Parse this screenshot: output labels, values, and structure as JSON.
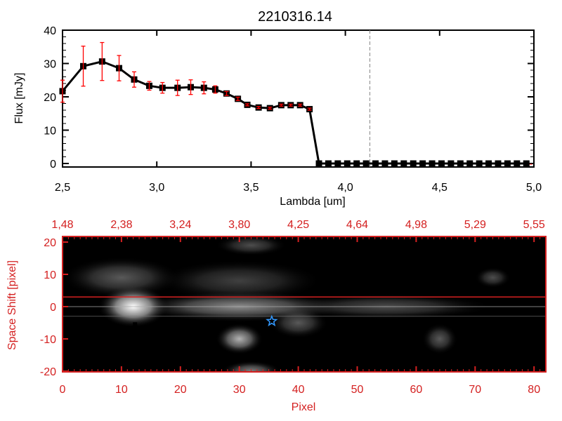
{
  "chart_data": [
    {
      "type": "line",
      "title": "2210316.14",
      "xlabel": "Lambda [um]",
      "ylabel": "Flux [mJy]",
      "xlim": [
        2.5,
        5.0
      ],
      "ylim": [
        -1,
        41
      ],
      "xticks": [
        "2.5",
        "3.0",
        "3.5",
        "4.0",
        "4.5",
        "5.0"
      ],
      "yticks": [
        "0",
        "10",
        "20",
        "30",
        "40"
      ],
      "marker_vline": 4.13,
      "x": [
        2.5,
        2.61,
        2.71,
        2.8,
        2.88,
        2.96,
        3.03,
        3.11,
        3.18,
        3.25,
        3.31,
        3.37,
        3.43,
        3.48,
        3.54,
        3.6,
        3.66,
        3.71,
        3.76,
        3.81,
        3.86,
        3.91,
        3.96,
        4.01,
        4.06,
        4.11,
        4.16,
        4.21,
        4.26,
        4.31,
        4.36,
        4.41,
        4.46,
        4.51,
        4.56,
        4.61,
        4.66,
        4.71,
        4.76,
        4.81,
        4.86,
        4.91,
        4.96
      ],
      "y": [
        21.7,
        29.2,
        30.6,
        28.6,
        25.2,
        23.3,
        22.7,
        22.7,
        22.9,
        22.7,
        22.2,
        21.0,
        19.4,
        17.6,
        16.8,
        16.6,
        17.5,
        17.5,
        17.5,
        16.3,
        0,
        0,
        0,
        0,
        0,
        0,
        0,
        0,
        0,
        0,
        0,
        0,
        0,
        0,
        0,
        0,
        0,
        0,
        0,
        0,
        0,
        0,
        0
      ],
      "yerr": [
        3.3,
        6.0,
        5.7,
        3.8,
        2.3,
        1.3,
        1.6,
        2.3,
        2.2,
        1.8,
        1.1,
        0.6,
        0.5,
        0.3,
        0.3,
        0.3,
        0.3,
        0.3,
        0.3,
        0.3,
        0,
        0,
        0,
        0,
        0,
        0,
        0,
        0,
        0,
        0,
        0,
        0,
        0,
        0,
        0,
        0,
        0,
        0,
        0,
        0,
        0,
        0,
        0
      ]
    },
    {
      "type": "heatmap",
      "xlabel": "Pixel",
      "ylabel": "Space Shift [pixel]",
      "xlim": [
        0,
        81
      ],
      "ylim": [
        -21,
        21
      ],
      "xticks": [
        "0",
        "10",
        "20",
        "30",
        "40",
        "50",
        "60",
        "70",
        "80"
      ],
      "yticks": [
        "20",
        "10",
        "0",
        "-10",
        "-20"
      ],
      "top_ticks": [
        "1.48",
        "2.38",
        "3.24",
        "3.80",
        "4.25",
        "4.64",
        "4.98",
        "5.29",
        "5.55"
      ],
      "aperture_line": 3,
      "source_marker": {
        "pixel": 35.5,
        "shift": -4.5
      },
      "blobs": [
        {
          "pixel": 12,
          "shift": 0,
          "sx": 6,
          "sy": 4,
          "level": 1.0
        },
        {
          "pixel": 30,
          "shift": 0,
          "sx": 18,
          "sy": 3,
          "level": 0.55
        },
        {
          "pixel": 55,
          "shift": 0,
          "sx": 18,
          "sy": 2.5,
          "level": 0.3
        },
        {
          "pixel": 10,
          "shift": 9,
          "sx": 10,
          "sy": 4,
          "level": 0.35
        },
        {
          "pixel": 30,
          "shift": 8,
          "sx": 14,
          "sy": 4,
          "level": 0.25
        },
        {
          "pixel": 30,
          "shift": -10,
          "sx": 4,
          "sy": 3,
          "level": 0.7
        },
        {
          "pixel": 40,
          "shift": -5,
          "sx": 5,
          "sy": 3,
          "level": 0.35
        },
        {
          "pixel": 64,
          "shift": -10,
          "sx": 3,
          "sy": 3,
          "level": 0.35
        },
        {
          "pixel": 32,
          "shift": -20,
          "sx": 5,
          "sy": 2,
          "level": 0.5
        },
        {
          "pixel": 32,
          "shift": 19,
          "sx": 6,
          "sy": 2,
          "level": 0.3
        },
        {
          "pixel": 73,
          "shift": 9,
          "sx": 3,
          "sy": 2,
          "level": 0.3
        }
      ]
    }
  ],
  "colors": {
    "axis_red": "#d42020",
    "error_red": "#ff0000",
    "star": "#3399ff"
  }
}
